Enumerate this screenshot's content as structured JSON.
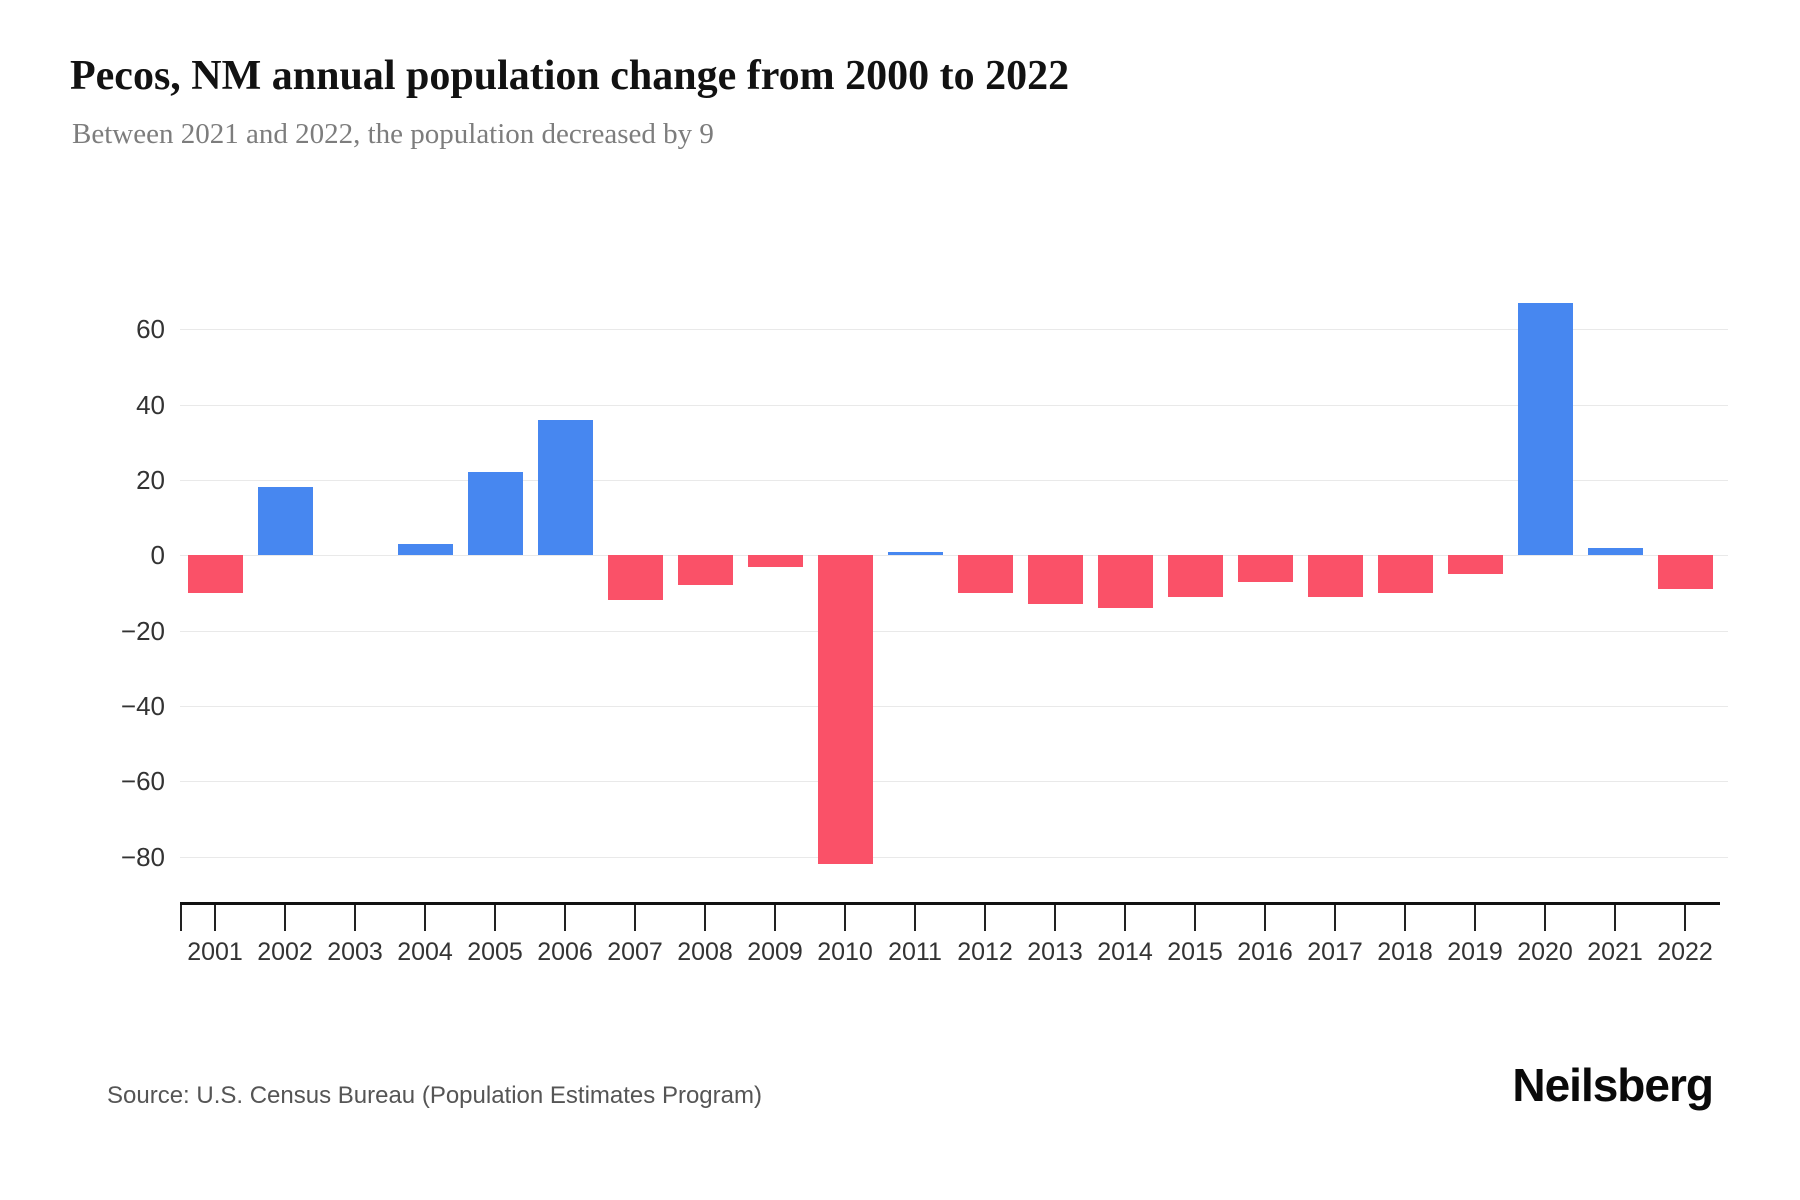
{
  "header": {
    "title": "Pecos, NM annual population change from 2000 to 2022",
    "subtitle": "Between 2021 and 2022, the population decreased by 9"
  },
  "chart_data": {
    "type": "bar",
    "title": "Pecos, NM annual population change from 2000 to 2022",
    "subtitle": "Between 2021 and 2022, the population decreased by 9",
    "categories": [
      "2001",
      "2002",
      "2003",
      "2004",
      "2005",
      "2006",
      "2007",
      "2008",
      "2009",
      "2010",
      "2011",
      "2012",
      "2013",
      "2014",
      "2015",
      "2016",
      "2017",
      "2018",
      "2019",
      "2020",
      "2021",
      "2022"
    ],
    "values": [
      -10,
      18,
      0,
      3,
      22,
      36,
      -12,
      -8,
      -3,
      -82,
      1,
      -10,
      -13,
      -14,
      -11,
      -7,
      -11,
      -10,
      -5,
      67,
      2,
      -9
    ],
    "xlabel": "",
    "ylabel": "",
    "ylim": [
      -92,
      81
    ],
    "yticks": [
      {
        "value": 60,
        "label": "60"
      },
      {
        "value": 40,
        "label": "40"
      },
      {
        "value": 20,
        "label": "20"
      },
      {
        "value": 0,
        "label": "0"
      },
      {
        "value": -20,
        "label": "−20"
      },
      {
        "value": -40,
        "label": "−40"
      },
      {
        "value": -60,
        "label": "−60"
      },
      {
        "value": -80,
        "label": "−80"
      }
    ],
    "grid": true,
    "legend": "none",
    "colors": {
      "positive": "#4787f0",
      "negative": "#fa5168",
      "gridline": "#e9e9e9",
      "axis": "#111111",
      "tick_label": "#333333"
    }
  },
  "footer": {
    "source": "Source: U.S. Census Bureau (Population Estimates Program)",
    "brand": "Neilsberg"
  }
}
